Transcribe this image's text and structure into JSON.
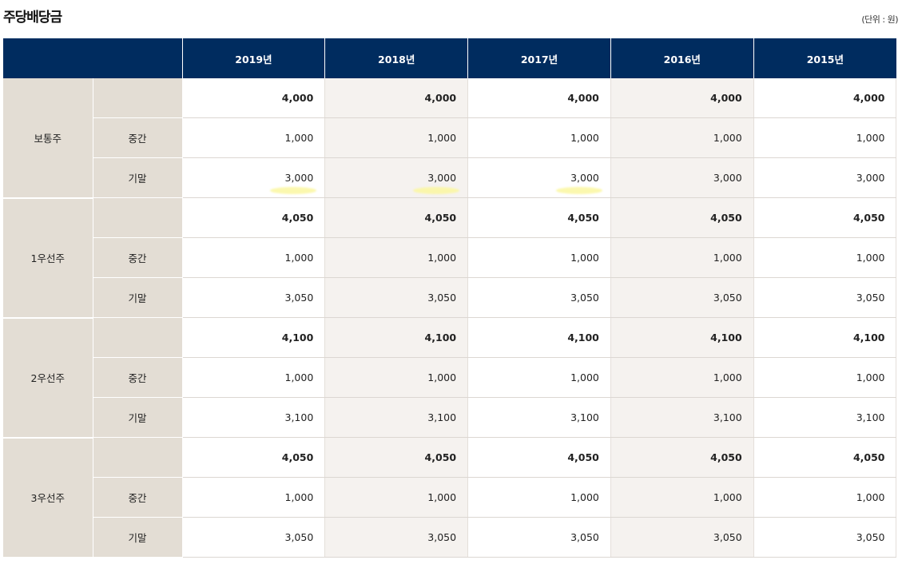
{
  "title": "주당배당금",
  "unit": "(단위 : 원)",
  "table": {
    "header": {
      "corner": "",
      "years": [
        "2019년",
        "2018년",
        "2017년",
        "2016년",
        "2015년"
      ]
    },
    "groups": [
      {
        "type": "보통주",
        "rows": [
          {
            "sub": "",
            "values": [
              "4,000",
              "4,000",
              "4,000",
              "4,000",
              "4,000"
            ]
          },
          {
            "sub": "중간",
            "values": [
              "1,000",
              "1,000",
              "1,000",
              "1,000",
              "1,000"
            ]
          },
          {
            "sub": "기말",
            "values": [
              "3,000",
              "3,000",
              "3,000",
              "3,000",
              "3,000"
            ]
          }
        ]
      },
      {
        "type": "1우선주",
        "rows": [
          {
            "sub": "",
            "values": [
              "4,050",
              "4,050",
              "4,050",
              "4,050",
              "4,050"
            ]
          },
          {
            "sub": "중간",
            "values": [
              "1,000",
              "1,000",
              "1,000",
              "1,000",
              "1,000"
            ]
          },
          {
            "sub": "기말",
            "values": [
              "3,050",
              "3,050",
              "3,050",
              "3,050",
              "3,050"
            ]
          }
        ]
      },
      {
        "type": "2우선주",
        "rows": [
          {
            "sub": "",
            "values": [
              "4,100",
              "4,100",
              "4,100",
              "4,100",
              "4,100"
            ]
          },
          {
            "sub": "중간",
            "values": [
              "1,000",
              "1,000",
              "1,000",
              "1,000",
              "1,000"
            ]
          },
          {
            "sub": "기말",
            "values": [
              "3,100",
              "3,100",
              "3,100",
              "3,100",
              "3,100"
            ]
          }
        ]
      },
      {
        "type": "3우선주",
        "rows": [
          {
            "sub": "",
            "values": [
              "4,050",
              "4,050",
              "4,050",
              "4,050",
              "4,050"
            ]
          },
          {
            "sub": "중간",
            "values": [
              "1,000",
              "1,000",
              "1,000",
              "1,000",
              "1,000"
            ]
          },
          {
            "sub": "기말",
            "values": [
              "3,050",
              "3,050",
              "3,050",
              "3,050",
              "3,050"
            ]
          }
        ]
      }
    ]
  },
  "colors": {
    "header_bg": "#002c5f",
    "label_bg": "#e3ddd4",
    "alt_col_bg": "#f5f2ef",
    "highlight": "#fbf7a0"
  }
}
